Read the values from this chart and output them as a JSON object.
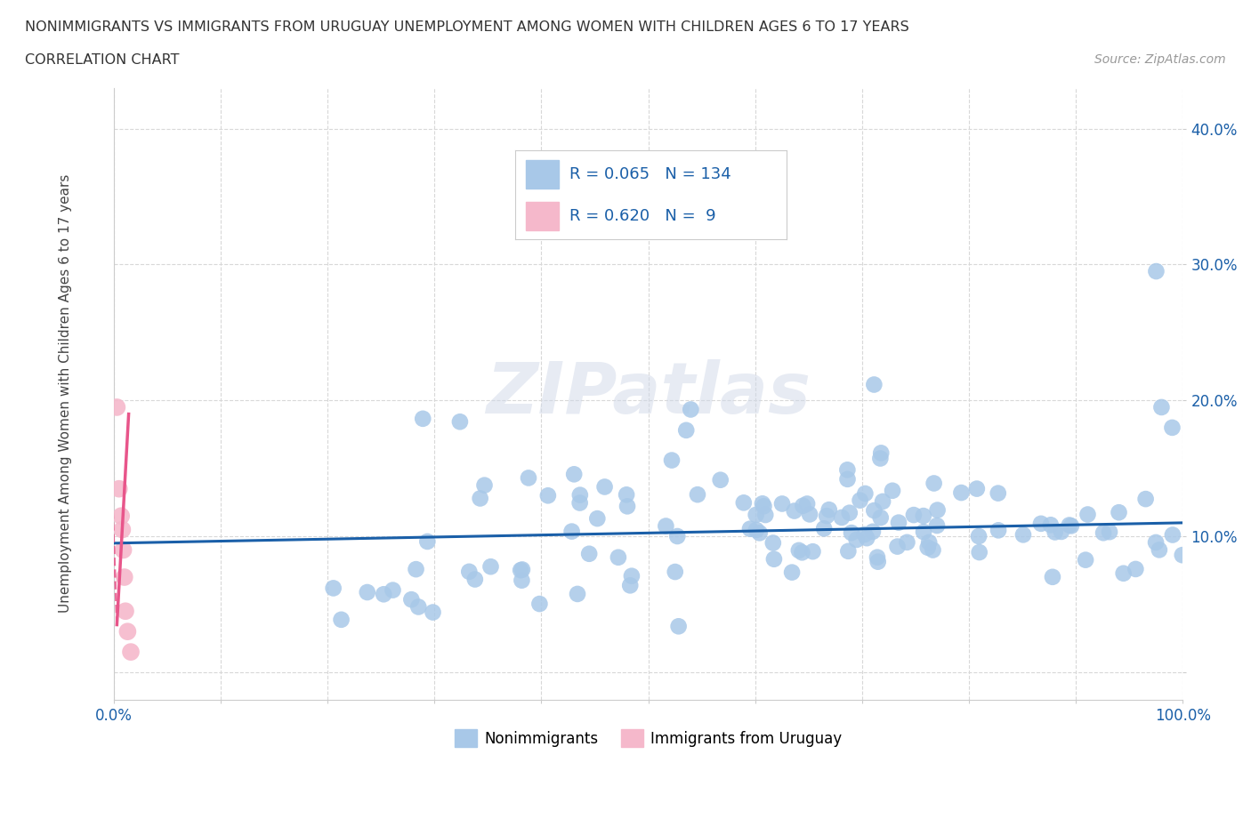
{
  "title_line1": "NONIMMIGRANTS VS IMMIGRANTS FROM URUGUAY UNEMPLOYMENT AMONG WOMEN WITH CHILDREN AGES 6 TO 17 YEARS",
  "title_line2": "CORRELATION CHART",
  "source": "Source: ZipAtlas.com",
  "ylabel": "Unemployment Among Women with Children Ages 6 to 17 years",
  "xlim": [
    0,
    100
  ],
  "ylim": [
    -2,
    43
  ],
  "blue_R": 0.065,
  "blue_N": 134,
  "pink_R": 0.62,
  "pink_N": 9,
  "blue_color": "#a8c8e8",
  "pink_color": "#f5b8cb",
  "blue_line_color": "#1a5fa8",
  "pink_line_color": "#e8558a",
  "grid_color": "#d8d8d8",
  "background_color": "#ffffff",
  "pink_scatter_x": [
    0.3,
    0.5,
    0.7,
    0.8,
    0.9,
    1.0,
    1.1,
    1.3,
    1.6
  ],
  "pink_scatter_y": [
    19.5,
    13.5,
    11.5,
    10.5,
    9.0,
    7.0,
    4.5,
    3.0,
    1.5
  ],
  "blue_reg_x0": 0,
  "blue_reg_y0": 9.5,
  "blue_reg_x1": 100,
  "blue_reg_y1": 11.0,
  "pink_solid_x0": 0.3,
  "pink_solid_y0": 3.5,
  "pink_solid_x1": 1.4,
  "pink_solid_y1": 19.0,
  "pink_dash_x0": 0.3,
  "pink_dash_y0": 3.5,
  "pink_dash_x1": -1.5,
  "pink_dash_y1": 42.0
}
